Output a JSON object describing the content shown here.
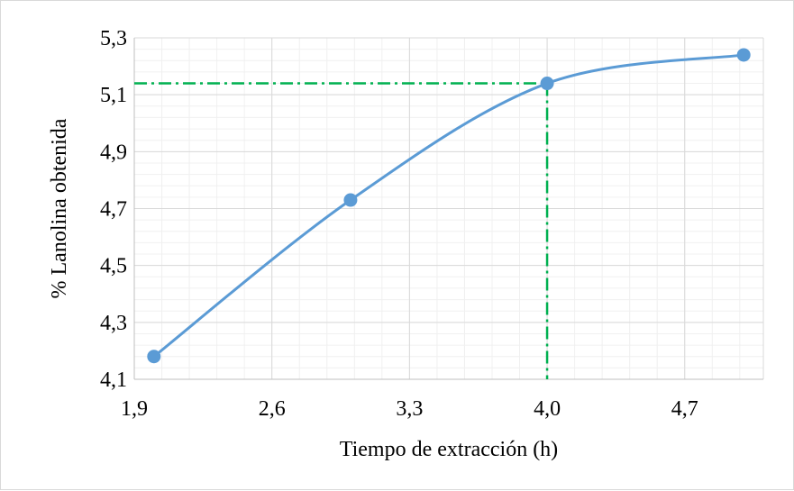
{
  "chart_data": {
    "type": "line",
    "xlabel": "Tiempo de extracción (h)",
    "ylabel": "% Lanolina obtenida",
    "xlim": [
      1.9,
      5.1
    ],
    "ylim": [
      4.1,
      5.3
    ],
    "x_ticks": [
      "1,9",
      "2,6",
      "3,3",
      "4,0",
      "4,7"
    ],
    "x_tick_values": [
      1.9,
      2.6,
      3.3,
      4.0,
      4.7
    ],
    "y_ticks": [
      "4,1",
      "4,3",
      "4,5",
      "4,7",
      "4,9",
      "5,1",
      "5,3"
    ],
    "y_tick_values": [
      4.1,
      4.3,
      4.5,
      4.7,
      4.9,
      5.1,
      5.3
    ],
    "grid": true,
    "legend": "none",
    "series": [
      {
        "x": [
          2,
          3,
          4,
          5
        ],
        "y": [
          4.18,
          4.73,
          5.14,
          5.24
        ],
        "color": "#5b9bd5",
        "smooth": true
      }
    ],
    "reference_lines": {
      "color": "#00b050",
      "style": "dash-dot",
      "x": 4.0,
      "y": 5.14
    }
  }
}
